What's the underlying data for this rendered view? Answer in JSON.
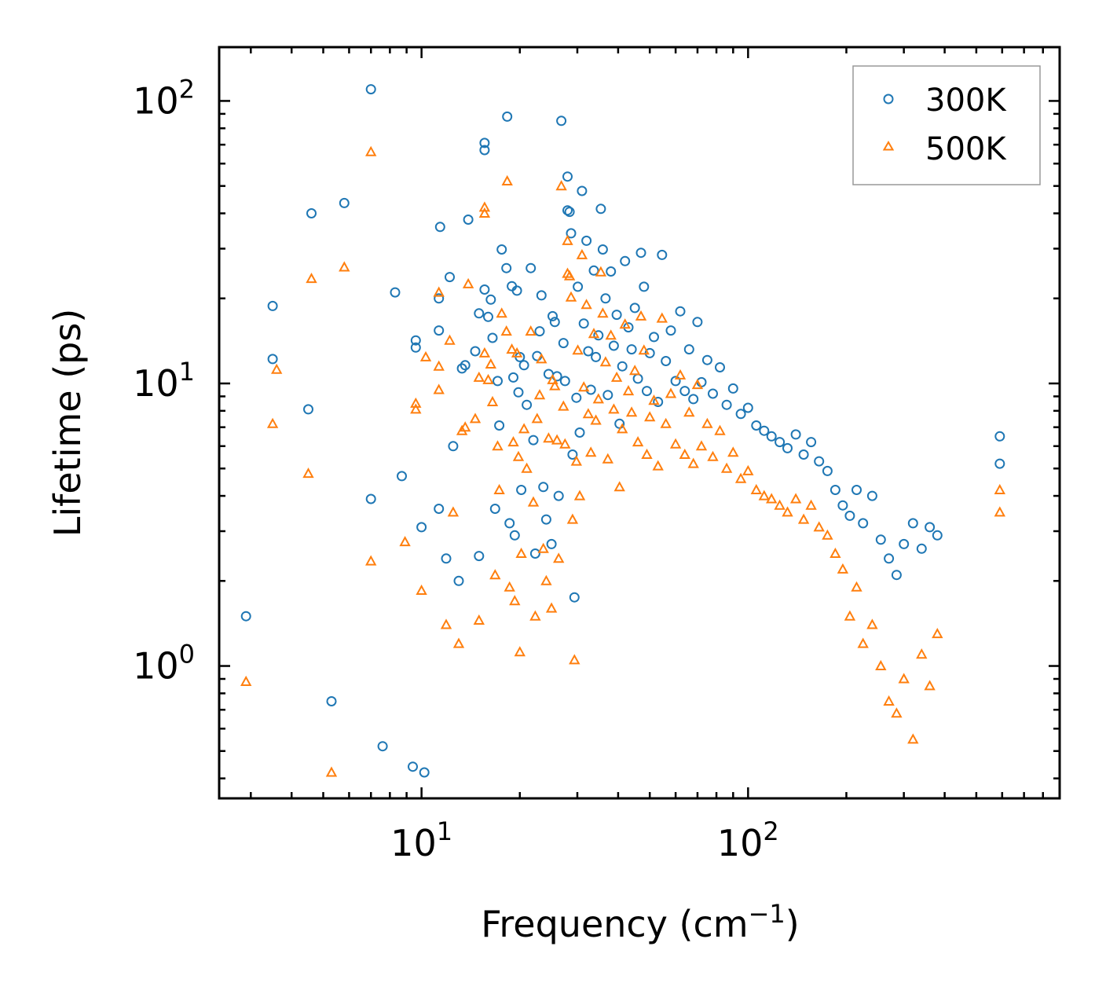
{
  "chart_data": {
    "type": "scatter",
    "title": "",
    "xscale": "log",
    "yscale": "log",
    "xlabel": "Frequency (cm",
    "xlabel_sup": "−1",
    "xlabel_tail": ")",
    "ylabel": "Lifetime (ps)",
    "xlim": [
      2.4,
      900
    ],
    "ylim": [
      0.34,
      155
    ],
    "x_ticks": [
      {
        "value": 10,
        "base": "10",
        "exp": "1"
      },
      {
        "value": 100,
        "base": "10",
        "exp": "2"
      }
    ],
    "y_ticks": [
      {
        "value": 1,
        "base": "10",
        "exp": "0"
      },
      {
        "value": 10,
        "base": "10",
        "exp": "1"
      },
      {
        "value": 100,
        "base": "10",
        "exp": "2"
      }
    ],
    "legend_position": "top-right",
    "series": [
      {
        "name": "300K",
        "label": "300K",
        "marker": "circle",
        "color": "#1f77b4",
        "points": [
          [
            2.9,
            1.5
          ],
          [
            3.5,
            12.2
          ],
          [
            3.5,
            18.8
          ],
          [
            4.5,
            8.1
          ],
          [
            4.6,
            40.0
          ],
          [
            5.3,
            0.75
          ],
          [
            5.8,
            43.5
          ],
          [
            7.0,
            3.9
          ],
          [
            7.0,
            110
          ],
          [
            7.6,
            0.52
          ],
          [
            8.3,
            21.0
          ],
          [
            8.7,
            4.7
          ],
          [
            9.4,
            0.44
          ],
          [
            9.6,
            14.2
          ],
          [
            9.6,
            13.4
          ],
          [
            10.0,
            3.1
          ],
          [
            10.2,
            0.42
          ],
          [
            11.3,
            3.6
          ],
          [
            11.3,
            20.0
          ],
          [
            11.3,
            15.4
          ],
          [
            11.4,
            35.8
          ],
          [
            11.9,
            2.4
          ],
          [
            12.2,
            23.8
          ],
          [
            12.5,
            6.0
          ],
          [
            13.0,
            2.0
          ],
          [
            13.3,
            11.3
          ],
          [
            13.6,
            11.6
          ],
          [
            13.9,
            38.0
          ],
          [
            14.6,
            13.0
          ],
          [
            15.0,
            17.7
          ],
          [
            15.0,
            2.45
          ],
          [
            15.6,
            71.0
          ],
          [
            15.6,
            67.0
          ],
          [
            15.6,
            21.5
          ],
          [
            16.0,
            17.2
          ],
          [
            16.3,
            19.8
          ],
          [
            16.5,
            14.5
          ],
          [
            16.8,
            3.6
          ],
          [
            17.1,
            10.2
          ],
          [
            17.3,
            7.1
          ],
          [
            17.6,
            29.8
          ],
          [
            18.2,
            25.6
          ],
          [
            18.3,
            88.0
          ],
          [
            18.6,
            3.2
          ],
          [
            18.9,
            22.1
          ],
          [
            19.1,
            10.5
          ],
          [
            19.3,
            2.9
          ],
          [
            19.6,
            21.3
          ],
          [
            19.8,
            9.3
          ],
          [
            20.0,
            12.4
          ],
          [
            20.2,
            4.2
          ],
          [
            20.6,
            11.6
          ],
          [
            21.0,
            8.4
          ],
          [
            21.6,
            25.6
          ],
          [
            22.0,
            6.3
          ],
          [
            22.3,
            2.5
          ],
          [
            22.6,
            12.5
          ],
          [
            23.0,
            15.3
          ],
          [
            23.3,
            20.5
          ],
          [
            23.6,
            4.3
          ],
          [
            24.1,
            3.3
          ],
          [
            24.5,
            10.8
          ],
          [
            25.0,
            2.7
          ],
          [
            25.2,
            17.3
          ],
          [
            25.6,
            16.5
          ],
          [
            26.0,
            10.6
          ],
          [
            26.3,
            4.0
          ],
          [
            26.8,
            85.0
          ],
          [
            27.2,
            13.9
          ],
          [
            27.5,
            10.2
          ],
          [
            28.0,
            54.0
          ],
          [
            28.0,
            41.0
          ],
          [
            28.4,
            40.5
          ],
          [
            28.7,
            34.0
          ],
          [
            29.0,
            5.6
          ],
          [
            29.4,
            1.75
          ],
          [
            29.8,
            8.9
          ],
          [
            30.1,
            22.0
          ],
          [
            30.5,
            6.7
          ],
          [
            31.0,
            48.0
          ],
          [
            31.4,
            16.3
          ],
          [
            32.0,
            32.0
          ],
          [
            32.4,
            13.0
          ],
          [
            33.0,
            9.5
          ],
          [
            33.7,
            25.1
          ],
          [
            34.2,
            12.4
          ],
          [
            34.8,
            14.8
          ],
          [
            35.4,
            41.5
          ],
          [
            35.9,
            29.8
          ],
          [
            36.6,
            20.0
          ],
          [
            37.2,
            9.1
          ],
          [
            38.0,
            24.9
          ],
          [
            38.8,
            13.6
          ],
          [
            39.6,
            17.5
          ],
          [
            40.4,
            7.2
          ],
          [
            41.2,
            11.5
          ],
          [
            42.0,
            27.1
          ],
          [
            43.0,
            15.8
          ],
          [
            44.0,
            13.2
          ],
          [
            45.0,
            18.5
          ],
          [
            46.0,
            10.4
          ],
          [
            47.0,
            29.0
          ],
          [
            48.0,
            22.0
          ],
          [
            49.0,
            9.4
          ],
          [
            50.0,
            12.8
          ],
          [
            51.5,
            14.6
          ],
          [
            53.0,
            8.6
          ],
          [
            54.5,
            28.5
          ],
          [
            56.0,
            12.0
          ],
          [
            58.0,
            15.4
          ],
          [
            60.0,
            10.2
          ],
          [
            62.0,
            18.0
          ],
          [
            64.0,
            9.4
          ],
          [
            66.0,
            13.2
          ],
          [
            68.0,
            8.8
          ],
          [
            70.0,
            16.5
          ],
          [
            72.0,
            10.1
          ],
          [
            75.0,
            12.1
          ],
          [
            78.0,
            9.2
          ],
          [
            82.0,
            11.4
          ],
          [
            86.0,
            8.4
          ],
          [
            90.0,
            9.6
          ],
          [
            95.0,
            7.8
          ],
          [
            100.0,
            8.2
          ],
          [
            106.0,
            7.1
          ],
          [
            112.0,
            6.8
          ],
          [
            118.0,
            6.5
          ],
          [
            125.0,
            6.2
          ],
          [
            132.0,
            5.9
          ],
          [
            140.0,
            6.6
          ],
          [
            148.0,
            5.6
          ],
          [
            156.0,
            6.2
          ],
          [
            165.0,
            5.3
          ],
          [
            175.0,
            4.9
          ],
          [
            185.0,
            4.2
          ],
          [
            195.0,
            3.7
          ],
          [
            205.0,
            3.4
          ],
          [
            215.0,
            4.2
          ],
          [
            225.0,
            3.2
          ],
          [
            240.0,
            4.0
          ],
          [
            255.0,
            2.8
          ],
          [
            270.0,
            2.4
          ],
          [
            285.0,
            2.1
          ],
          [
            300.0,
            2.7
          ],
          [
            320.0,
            3.2
          ],
          [
            340.0,
            2.6
          ],
          [
            360.0,
            3.1
          ],
          [
            380.0,
            2.9
          ],
          [
            590.0,
            6.5
          ],
          [
            590.0,
            5.2
          ]
        ]
      },
      {
        "name": "500K",
        "label": "500K",
        "marker": "triangle",
        "color": "#ff7f0e",
        "points": [
          [
            2.9,
            0.88
          ],
          [
            3.5,
            7.2
          ],
          [
            3.6,
            11.2
          ],
          [
            4.5,
            4.8
          ],
          [
            4.6,
            23.5
          ],
          [
            5.3,
            0.42
          ],
          [
            5.8,
            25.8
          ],
          [
            7.0,
            2.35
          ],
          [
            7.0,
            66.0
          ],
          [
            8.9,
            2.75
          ],
          [
            9.6,
            8.5
          ],
          [
            9.6,
            8.1
          ],
          [
            10.0,
            1.85
          ],
          [
            10.3,
            12.4
          ],
          [
            11.3,
            11.5
          ],
          [
            11.3,
            9.5
          ],
          [
            11.3,
            21.0
          ],
          [
            11.9,
            1.4
          ],
          [
            12.2,
            14.2
          ],
          [
            12.5,
            3.5
          ],
          [
            13.0,
            1.2
          ],
          [
            13.3,
            6.8
          ],
          [
            13.6,
            7.0
          ],
          [
            13.9,
            22.5
          ],
          [
            14.6,
            7.5
          ],
          [
            15.0,
            10.5
          ],
          [
            15.0,
            1.45
          ],
          [
            15.6,
            42.0
          ],
          [
            15.6,
            40.0
          ],
          [
            15.6,
            12.8
          ],
          [
            16.0,
            10.3
          ],
          [
            16.3,
            11.7
          ],
          [
            16.5,
            8.6
          ],
          [
            16.8,
            2.1
          ],
          [
            17.1,
            6.0
          ],
          [
            17.3,
            4.2
          ],
          [
            17.6,
            17.7
          ],
          [
            18.2,
            15.3
          ],
          [
            18.3,
            52.0
          ],
          [
            18.6,
            1.9
          ],
          [
            18.9,
            13.2
          ],
          [
            19.1,
            6.2
          ],
          [
            19.3,
            1.7
          ],
          [
            19.6,
            12.8
          ],
          [
            19.8,
            5.5
          ],
          [
            20.0,
            1.12
          ],
          [
            20.2,
            2.5
          ],
          [
            20.6,
            6.9
          ],
          [
            21.0,
            5.0
          ],
          [
            21.6,
            15.3
          ],
          [
            22.0,
            3.8
          ],
          [
            22.3,
            1.5
          ],
          [
            22.6,
            7.5
          ],
          [
            23.0,
            9.1
          ],
          [
            23.3,
            12.2
          ],
          [
            23.6,
            2.6
          ],
          [
            24.1,
            2.0
          ],
          [
            24.5,
            6.4
          ],
          [
            25.0,
            1.6
          ],
          [
            25.2,
            10.3
          ],
          [
            25.6,
            9.8
          ],
          [
            26.0,
            6.3
          ],
          [
            26.3,
            2.4
          ],
          [
            26.8,
            50.0
          ],
          [
            27.2,
            8.3
          ],
          [
            27.5,
            6.1
          ],
          [
            28.0,
            32.0
          ],
          [
            28.0,
            24.5
          ],
          [
            28.4,
            24.0
          ],
          [
            28.7,
            20.2
          ],
          [
            29.0,
            3.3
          ],
          [
            29.4,
            1.05
          ],
          [
            29.8,
            5.3
          ],
          [
            30.1,
            13.1
          ],
          [
            30.5,
            4.0
          ],
          [
            31.0,
            28.5
          ],
          [
            31.4,
            9.7
          ],
          [
            32.0,
            19.0
          ],
          [
            32.4,
            7.8
          ],
          [
            33.0,
            5.7
          ],
          [
            33.7,
            15.0
          ],
          [
            34.2,
            7.4
          ],
          [
            34.8,
            8.8
          ],
          [
            35.4,
            24.8
          ],
          [
            35.9,
            17.7
          ],
          [
            36.6,
            11.9
          ],
          [
            37.2,
            5.4
          ],
          [
            38.0,
            14.8
          ],
          [
            38.8,
            8.1
          ],
          [
            39.6,
            10.5
          ],
          [
            40.4,
            4.3
          ],
          [
            41.2,
            6.9
          ],
          [
            42.0,
            16.2
          ],
          [
            43.0,
            9.4
          ],
          [
            44.0,
            7.9
          ],
          [
            45.0,
            11.1
          ],
          [
            46.0,
            6.2
          ],
          [
            47.0,
            17.3
          ],
          [
            48.0,
            13.1
          ],
          [
            49.0,
            5.6
          ],
          [
            50.0,
            7.6
          ],
          [
            51.5,
            8.7
          ],
          [
            53.0,
            5.1
          ],
          [
            54.5,
            17.0
          ],
          [
            56.0,
            7.2
          ],
          [
            58.0,
            9.2
          ],
          [
            60.0,
            6.1
          ],
          [
            62.0,
            10.7
          ],
          [
            64.0,
            5.6
          ],
          [
            66.0,
            7.9
          ],
          [
            68.0,
            5.2
          ],
          [
            70.0,
            9.9
          ],
          [
            72.0,
            6.0
          ],
          [
            75.0,
            7.2
          ],
          [
            78.0,
            5.5
          ],
          [
            82.0,
            6.8
          ],
          [
            86.0,
            5.0
          ],
          [
            90.0,
            5.7
          ],
          [
            95.0,
            4.6
          ],
          [
            100.0,
            4.9
          ],
          [
            106.0,
            4.2
          ],
          [
            112.0,
            4.0
          ],
          [
            118.0,
            3.9
          ],
          [
            125.0,
            3.7
          ],
          [
            132.0,
            3.5
          ],
          [
            140.0,
            3.9
          ],
          [
            148.0,
            3.3
          ],
          [
            156.0,
            3.7
          ],
          [
            165.0,
            3.1
          ],
          [
            175.0,
            2.9
          ],
          [
            185.0,
            2.5
          ],
          [
            195.0,
            2.2
          ],
          [
            205.0,
            1.5
          ],
          [
            215.0,
            1.9
          ],
          [
            225.0,
            1.2
          ],
          [
            240.0,
            1.4
          ],
          [
            255.0,
            1.0
          ],
          [
            270.0,
            0.75
          ],
          [
            285.0,
            0.68
          ],
          [
            300.0,
            0.9
          ],
          [
            320.0,
            0.55
          ],
          [
            340.0,
            1.1
          ],
          [
            360.0,
            0.85
          ],
          [
            380.0,
            1.3
          ],
          [
            590.0,
            4.2
          ],
          [
            590.0,
            3.5
          ]
        ]
      }
    ]
  }
}
